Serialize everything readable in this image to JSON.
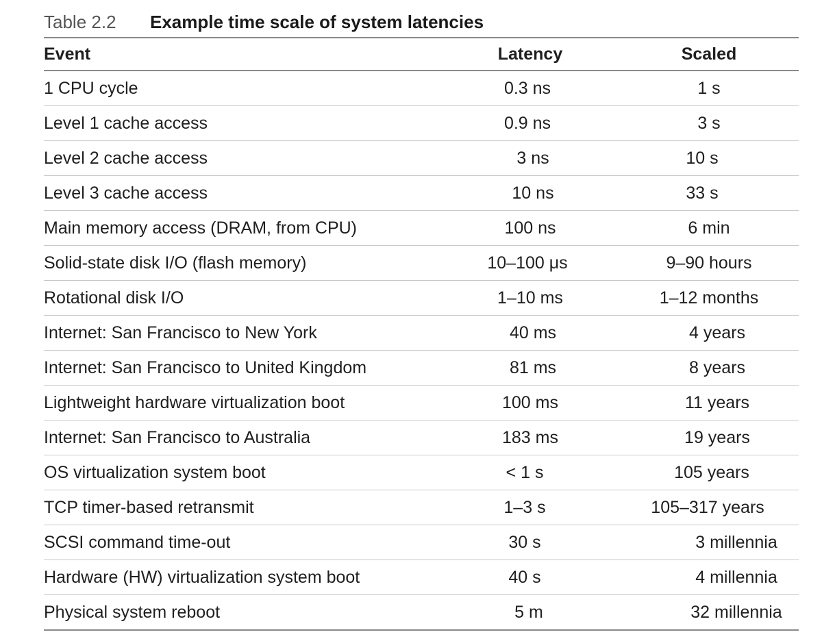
{
  "caption": {
    "label": "Table 2.2",
    "title": "Example time scale of system latencies"
  },
  "headers": [
    "Event",
    "Latency",
    "Scaled"
  ],
  "rows": [
    {
      "event": "1 CPU cycle",
      "latency": "0.3 ns",
      "scaled": "1 s"
    },
    {
      "event": "Level 1 cache access",
      "latency": "0.9 ns",
      "scaled": "3 s"
    },
    {
      "event": "Level 2 cache access",
      "latency": "3 ns",
      "scaled": "10 s"
    },
    {
      "event": "Level 3 cache access",
      "latency": "10 ns",
      "scaled": "33 s"
    },
    {
      "event": "Main memory access (DRAM, from CPU)",
      "latency": "100 ns",
      "scaled": "6 min"
    },
    {
      "event": "Solid-state disk I/O (flash memory)",
      "latency": "10–100 μs",
      "scaled": "9–90 hours"
    },
    {
      "event": "Rotational disk I/O",
      "latency": "1–10 ms",
      "scaled": "1–12 months"
    },
    {
      "event": "Internet: San Francisco to New York",
      "latency": "40 ms",
      "scaled": "4 years"
    },
    {
      "event": "Internet: San Francisco to United Kingdom",
      "latency": "81 ms",
      "scaled": "8 years"
    },
    {
      "event": "Lightweight hardware virtualization boot",
      "latency": "100 ms",
      "scaled": "11 years"
    },
    {
      "event": "Internet: San Francisco to Australia",
      "latency": "183 ms",
      "scaled": "19 years"
    },
    {
      "event": "OS virtualization system boot",
      "latency": "< 1 s",
      "scaled": "105 years"
    },
    {
      "event": "TCP timer-based retransmit",
      "latency": "1–3 s",
      "scaled": "105–317 years"
    },
    {
      "event": "SCSI command time-out",
      "latency": "30 s",
      "scaled": "3 millennia"
    },
    {
      "event": "Hardware (HW) virtualization system boot",
      "latency": "40 s",
      "scaled": "4 millennia"
    },
    {
      "event": "Physical system reboot",
      "latency": "5 m",
      "scaled": "32 millennia"
    }
  ]
}
